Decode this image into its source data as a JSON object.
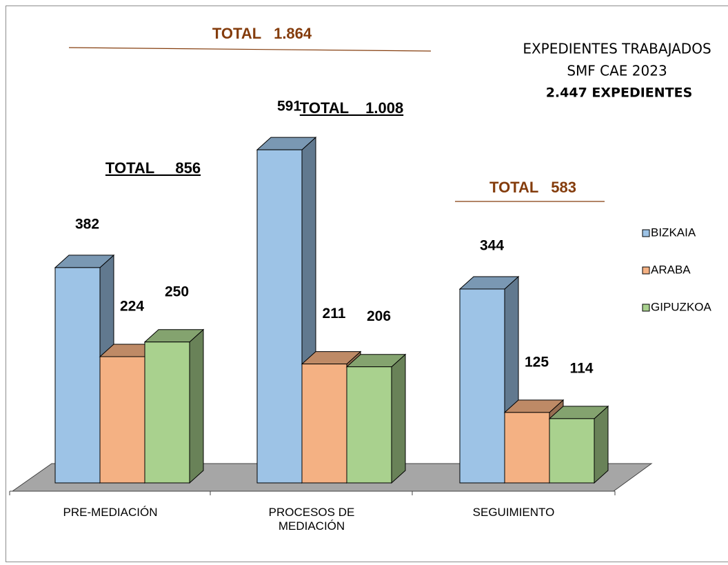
{
  "chart_data": {
    "type": "bar3d",
    "title": "EXPEDIENTES TRABAJADOS",
    "subtitle": "SMF CAE 2023",
    "annotations": [
      "2.447 EXPEDIENTES",
      "TOTAL   1.864",
      "TOTAL    1.008",
      "TOTAL     856",
      "TOTAL   583"
    ],
    "categories": [
      "PRE-MEDIACIÓN",
      "PROCESOS DE MEDIACIÓN",
      "SEGUIMIENTO"
    ],
    "series": [
      {
        "name": "BIZKAIA",
        "color": "#9dc3e6",
        "values": [
          382,
          591,
          344
        ]
      },
      {
        "name": "ARABA",
        "color": "#f4b183",
        "values": [
          224,
          211,
          125
        ]
      },
      {
        "name": "GIPUZKOA",
        "color": "#a9d18e",
        "values": [
          250,
          206,
          114
        ]
      }
    ],
    "legend": "right"
  }
}
